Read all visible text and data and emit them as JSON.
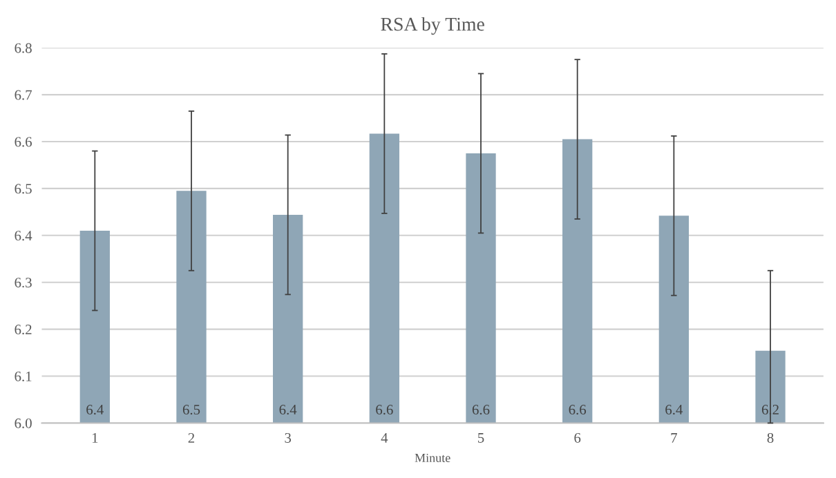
{
  "chart_data": {
    "type": "bar",
    "title": "RSA by Time",
    "xlabel": "Minute",
    "categories": [
      "1",
      "2",
      "3",
      "4",
      "5",
      "6",
      "7",
      "8"
    ],
    "values": [
      6.41,
      6.495,
      6.444,
      6.617,
      6.575,
      6.605,
      6.442,
      6.154
    ],
    "errors": [
      0.17,
      0.17,
      0.17,
      0.17,
      0.17,
      0.17,
      0.17,
      [
        6.0,
        6.325
      ]
    ],
    "value_labels": [
      "6.4",
      "6.5",
      "6.4",
      "6.6",
      "6.6",
      "6.6",
      "6.4",
      "6.2"
    ],
    "color": "#8fa6b6",
    "ylim": [
      6.0,
      6.8
    ],
    "yticks": [
      {
        "value": 6.0,
        "label": "6.0"
      },
      6.1,
      6.2,
      6.3,
      6.4,
      6.5,
      6.6,
      6.7,
      6.8
    ],
    "grid": "y",
    "legend": false
  }
}
